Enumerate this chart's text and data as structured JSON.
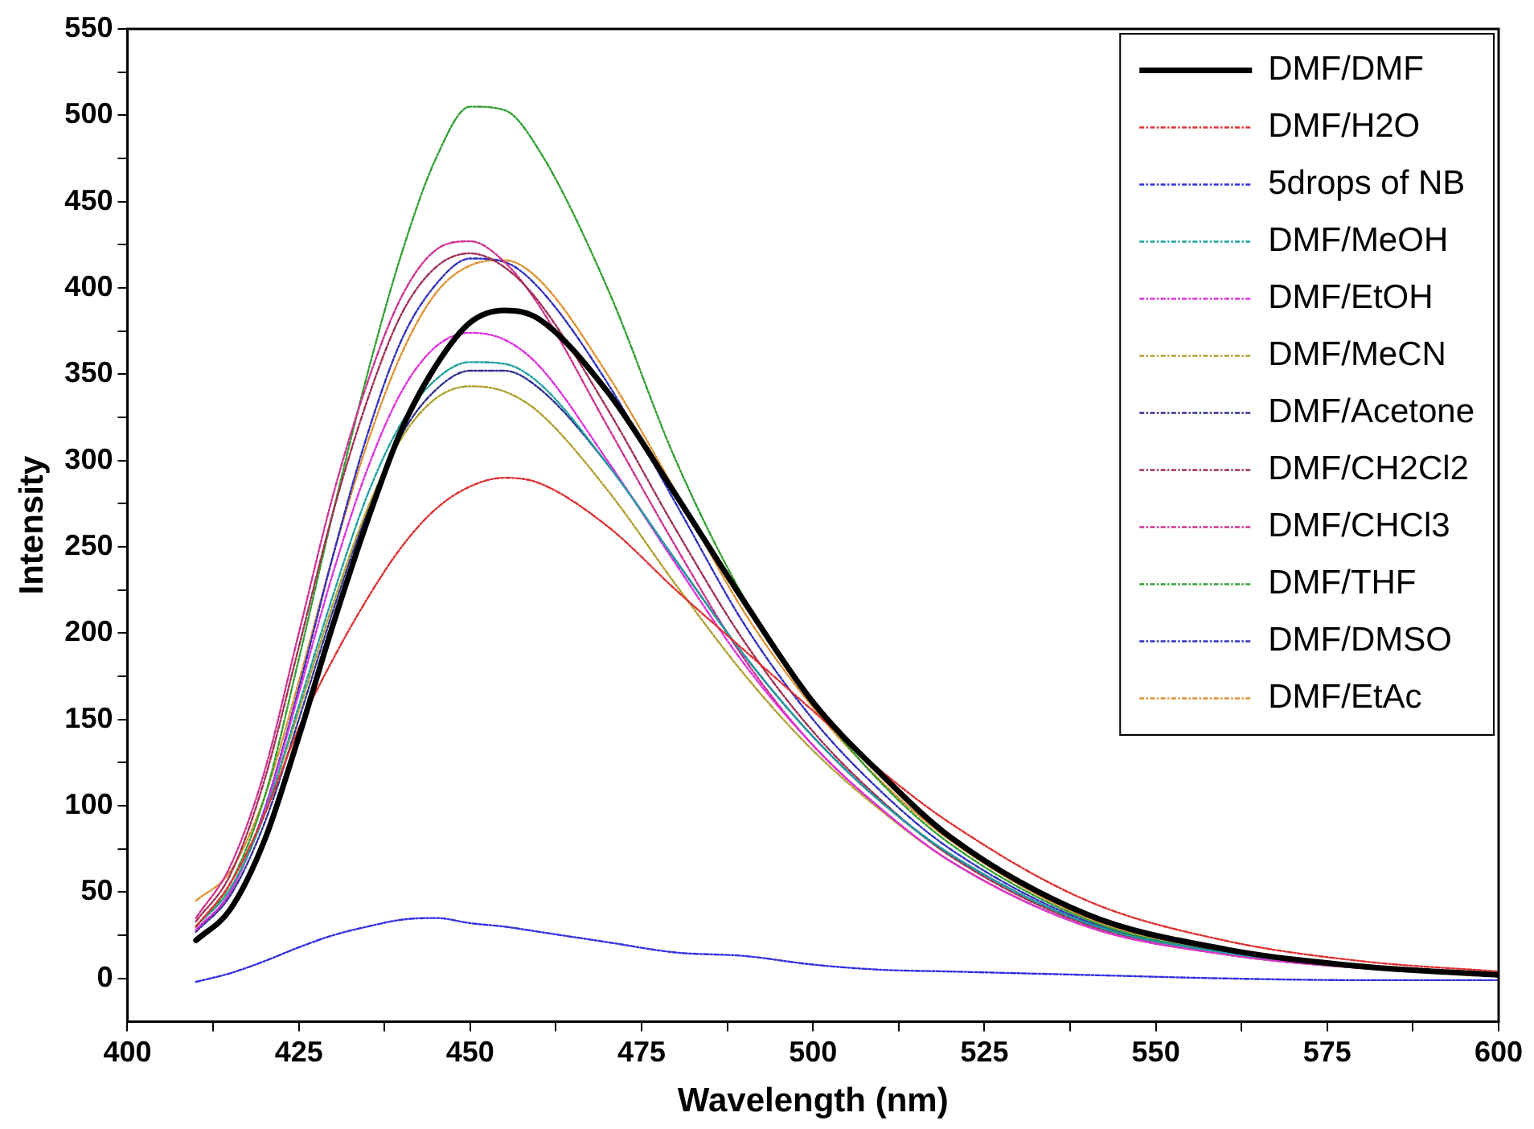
{
  "chart_data": {
    "type": "line",
    "xlabel": "Wavelength (nm)",
    "ylabel": "Intensity",
    "x": [
      410,
      415,
      420,
      425,
      430,
      435,
      440,
      445,
      450,
      455,
      460,
      470,
      480,
      490,
      500,
      510,
      520,
      540,
      560,
      580,
      600
    ],
    "xlim": [
      400,
      600
    ],
    "xticks": [
      400,
      {
        "value": 412.5,
        "label": null
      },
      425,
      {
        "value": 437.5,
        "label": null
      },
      450,
      {
        "value": 462.5,
        "label": null
      },
      475,
      {
        "value": 487.5,
        "label": null
      },
      500,
      {
        "value": 512.5,
        "label": null
      },
      525,
      {
        "value": 537.5,
        "label": null
      },
      550,
      {
        "value": 562.5,
        "label": null
      },
      575,
      {
        "value": 587.5,
        "label": null
      },
      600
    ],
    "ylim": [
      -25,
      550
    ],
    "yticks": [
      0,
      {
        "value": 25,
        "label": null
      },
      50,
      {
        "value": 75,
        "label": null
      },
      100,
      {
        "value": 125,
        "label": null
      },
      150,
      {
        "value": 175,
        "label": null
      },
      200,
      {
        "value": 225,
        "label": null
      },
      250,
      {
        "value": 275,
        "label": null
      },
      300,
      {
        "value": 325,
        "label": null
      },
      350,
      {
        "value": 375,
        "label": null
      },
      400,
      {
        "value": 425,
        "label": null
      },
      450,
      {
        "value": 475,
        "label": null
      },
      500,
      {
        "value": 525,
        "label": null
      },
      550
    ],
    "grid": false,
    "legend": "top right",
    "marker": "none",
    "series": [
      {
        "name": "DMF/DMF",
        "color": "#000000",
        "line_style": "solid",
        "values": [
          22,
          40,
          80,
          140,
          205,
          265,
          318,
          355,
          380,
          387,
          382,
          340,
          280,
          218,
          160,
          118,
          82,
          37,
          17,
          7,
          2
        ]
      },
      {
        "name": "DMF/H2O",
        "color": "#e03030",
        "line_style": "dashed",
        "values": [
          30,
          55,
          95,
          145,
          185,
          220,
          250,
          272,
          285,
          290,
          287,
          262,
          225,
          190,
          155,
          120,
          90,
          45,
          22,
          10,
          4
        ]
      },
      {
        "name": "5drops of NB",
        "color": "#3030e0",
        "line_style": "dashed",
        "values": [
          -2,
          3,
          10,
          18,
          25,
          30,
          34,
          35,
          32,
          30,
          27,
          21,
          15,
          13,
          8,
          5,
          4,
          2,
          0,
          -1,
          -1
        ]
      },
      {
        "name": "DMF/MeOH",
        "color": "#20a0a0",
        "line_style": "dashed",
        "values": [
          30,
          52,
          95,
          158,
          222,
          280,
          322,
          347,
          357,
          356,
          345,
          298,
          242,
          187,
          140,
          102,
          72,
          32,
          15,
          7,
          2
        ]
      },
      {
        "name": "DMF/EtOH",
        "color": "#e030e0",
        "line_style": "dashed",
        "values": [
          28,
          50,
          97,
          165,
          235,
          295,
          340,
          366,
          374,
          370,
          355,
          300,
          240,
          182,
          135,
          98,
          68,
          30,
          14,
          6,
          2
        ]
      },
      {
        "name": "DMF/MeCN",
        "color": "#b0a030",
        "line_style": "dashed",
        "values": [
          30,
          52,
          95,
          155,
          217,
          272,
          313,
          336,
          343,
          340,
          328,
          283,
          228,
          176,
          132,
          97,
          68,
          30,
          14,
          6,
          2
        ]
      },
      {
        "name": "DMF/Acetone",
        "color": "#303090",
        "line_style": "dashed",
        "values": [
          27,
          48,
          90,
          150,
          213,
          270,
          315,
          341,
          352,
          352,
          342,
          298,
          242,
          187,
          140,
          102,
          72,
          32,
          15,
          7,
          2
        ]
      },
      {
        "name": "DMF/CH2Cl2",
        "color": "#a03050",
        "line_style": "dashed",
        "values": [
          33,
          60,
          115,
          192,
          270,
          335,
          385,
          412,
          420,
          412,
          392,
          330,
          260,
          195,
          143,
          103,
          71,
          31,
          14,
          6,
          2
        ]
      },
      {
        "name": "DMF/CHCl3",
        "color": "#d03090",
        "line_style": "dashed",
        "values": [
          35,
          65,
          120,
          200,
          280,
          345,
          395,
          422,
          427,
          415,
          390,
          320,
          250,
          185,
          135,
          98,
          68,
          30,
          14,
          6,
          2
        ]
      },
      {
        "name": "DMF/THF",
        "color": "#30a030",
        "line_style": "dashed",
        "values": [
          30,
          55,
          105,
          185,
          270,
          350,
          420,
          475,
          505,
          503,
          480,
          400,
          300,
          220,
          160,
          113,
          78,
          34,
          15,
          7,
          2
        ]
      },
      {
        "name": "DMF/DMSO",
        "color": "#3030c0",
        "line_style": "dashed",
        "values": [
          28,
          50,
          98,
          168,
          245,
          315,
          370,
          402,
          417,
          415,
          400,
          345,
          275,
          205,
          150,
          108,
          75,
          33,
          15,
          7,
          2
        ]
      },
      {
        "name": "DMF/EtAc",
        "color": "#e09030",
        "line_style": "dashed",
        "values": [
          45,
          62,
          105,
          172,
          245,
          310,
          362,
          397,
          413,
          416,
          405,
          350,
          282,
          212,
          157,
          114,
          80,
          35,
          16,
          7,
          2
        ]
      }
    ]
  }
}
